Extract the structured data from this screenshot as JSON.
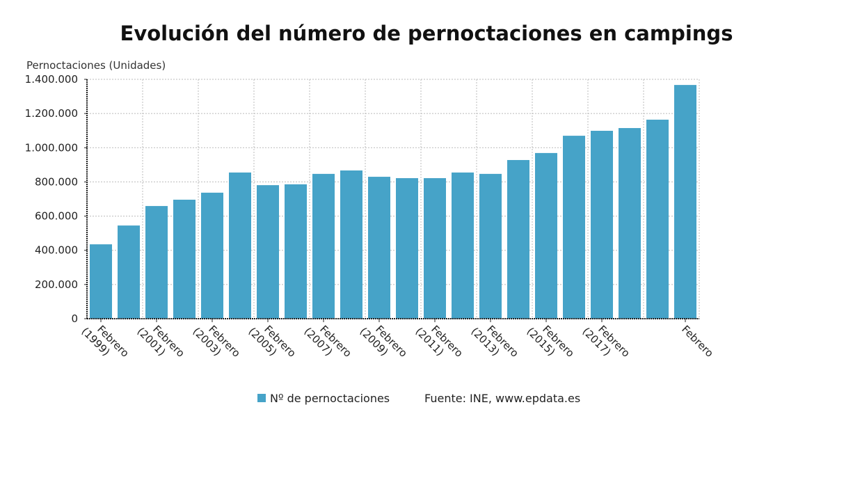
{
  "chart_data": {
    "type": "bar",
    "title": "Evolución del número de pernoctaciones en campings",
    "ylabel": "Pernoctaciones (Unidades)",
    "xlabel": "",
    "ylim": [
      0,
      1400000
    ],
    "yticks": [
      0,
      200000,
      400000,
      600000,
      800000,
      1000000,
      1200000,
      1400000
    ],
    "ytick_labels": [
      "0",
      "200.000",
      "400.000",
      "600.000",
      "800.000",
      "1.000.000",
      "1.200.000",
      "1.400.000"
    ],
    "grid": true,
    "categories": [
      "Febrero (1999)",
      "",
      "Febrero (2001)",
      "",
      "Febrero (2003)",
      "",
      "Febrero (2005)",
      "",
      "Febrero (2007)",
      "",
      "Febrero (2009)",
      "",
      "Febrero (2011)",
      "",
      "Febrero (2013)",
      "",
      "Febrero (2015)",
      "",
      "Febrero (2017)",
      "",
      "",
      "Febrero"
    ],
    "series": [
      {
        "name": "Nº de pernoctaciones",
        "color": "#46a3c8",
        "values": [
          435000,
          545000,
          659000,
          696000,
          737000,
          855000,
          781000,
          786000,
          847000,
          867000,
          830000,
          822000,
          822000,
          855000,
          847000,
          928000,
          969000,
          1070000,
          1099000,
          1115000,
          1164000,
          1367000
        ]
      }
    ],
    "legend_placement": "bottom",
    "source": "Fuente: INE, www.epdata.es"
  }
}
